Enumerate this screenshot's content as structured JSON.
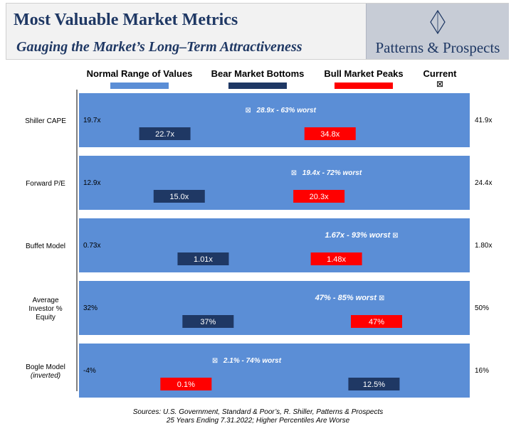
{
  "header": {
    "title": "Most Valuable Market Metrics",
    "subtitle": "Gauging the Market’s Long–Term Attractiveness",
    "logo_text": "Patterns & Prospects"
  },
  "legend": [
    {
      "label": "Normal Range of Values",
      "color": "#5b8ed6",
      "kind": "swatch"
    },
    {
      "label": "Bear Market Bottoms",
      "color": "#1f3864",
      "kind": "swatch"
    },
    {
      "label": "Bull Market Peaks",
      "color": "#ff0000",
      "kind": "swatch"
    },
    {
      "label": "Current",
      "color": "#000000",
      "kind": "marker"
    }
  ],
  "colors": {
    "range": "#5b8ed6",
    "bear": "#1f3864",
    "bull": "#ff0000",
    "axis": "#000000"
  },
  "marker_symbol": "⊠",
  "chart_data": {
    "type": "bar",
    "orientation": "horizontal",
    "metrics": [
      {
        "name": "Shiller CAPE",
        "min_label": "19.7x",
        "max_label": "41.9x",
        "min": 19.7,
        "max": 41.9,
        "bear": 22.7,
        "bear_label": "22.7x",
        "bull": 34.8,
        "bull_label": "34.8x",
        "current": 28.9,
        "current_label": "28.9x - 63% worst",
        "marker_side": "left"
      },
      {
        "name": "Forward P/E",
        "min_label": "12.9x",
        "max_label": "24.4x",
        "min": 12.9,
        "max": 24.4,
        "bear": 15.0,
        "bear_label": "15.0x",
        "bull": 20.3,
        "bull_label": "20.3x",
        "current": 19.4,
        "current_label": "19.4x - 72% worst",
        "marker_side": "left"
      },
      {
        "name": "Buffet Model",
        "min_label": "0.73x",
        "max_label": "1.80x",
        "min": 0.73,
        "max": 1.8,
        "bear": 1.01,
        "bear_label": "1.01x",
        "bull": 1.48,
        "bull_label": "1.48x",
        "current": 1.67,
        "current_label": "1.67x - 93% worst",
        "marker_side": "right"
      },
      {
        "name": "Average Investor % Equity",
        "min_label": "32%",
        "max_label": "50%",
        "min": 32,
        "max": 50,
        "bear": 37,
        "bear_label": "37%",
        "bull": 47,
        "bull_label": "47%",
        "current": 47,
        "current_label": "47% - 85% worst",
        "marker_side": "right"
      },
      {
        "name": "Bogle Model",
        "name_note": "(inverted)",
        "min_label": "-4%",
        "max_label": "16%",
        "min": -4,
        "max": 16,
        "bear": 12.5,
        "bear_label": "12.5%",
        "bull": 0.1,
        "bull_label": "0.1%",
        "current": 2.1,
        "current_label": "2.1% - 74% worst",
        "marker_side": "left"
      }
    ]
  },
  "footnote": {
    "line1": "Sources: U.S. Government, Standard & Poor’s, R. Shiller, Patterns & Prospects",
    "line2": "25 Years Ending 7.31.2022; Higher Percentiles Are Worse"
  }
}
